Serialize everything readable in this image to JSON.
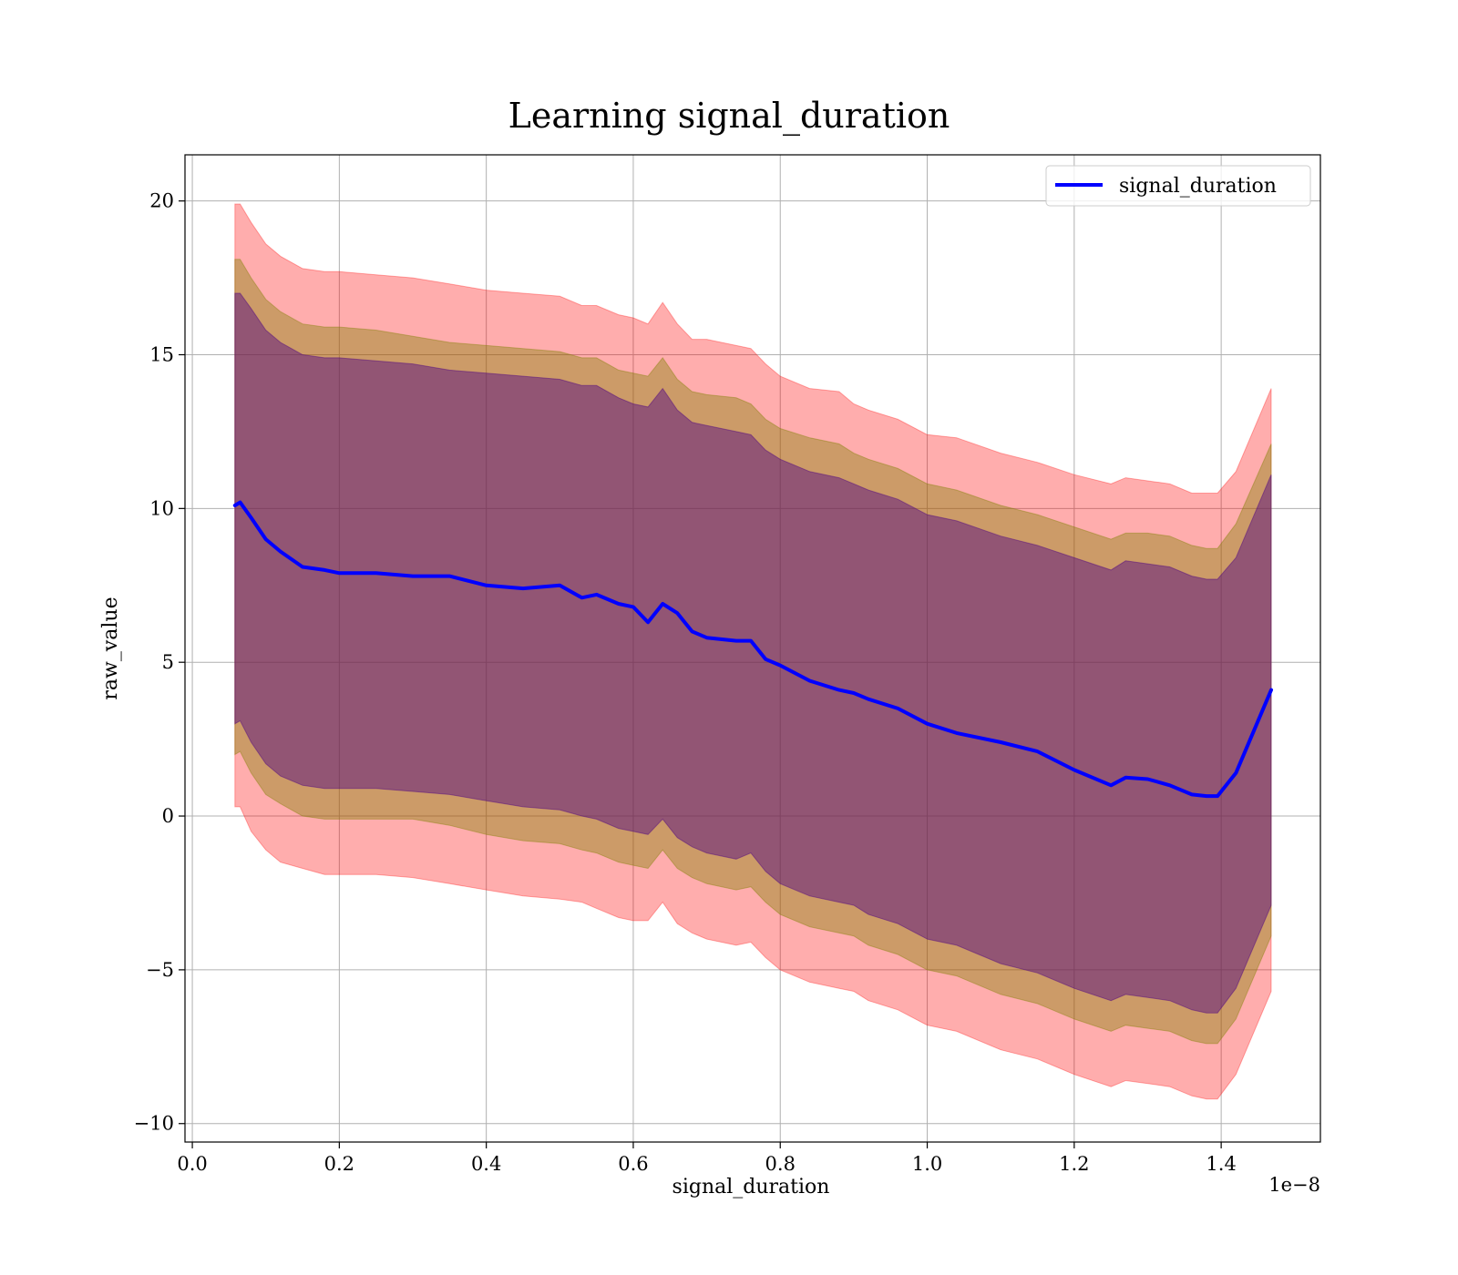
{
  "chart_data": {
    "type": "line",
    "title": "Learning signal_duration",
    "xlabel": "signal_duration",
    "ylabel": "raw_value",
    "x_offset_text": "1e−8",
    "xlim": [
      -0.01,
      1.535
    ],
    "ylim": [
      -10.6,
      21.5
    ],
    "xticks": [
      0.0,
      0.2,
      0.4,
      0.6,
      0.8,
      1.0,
      1.2,
      1.4
    ],
    "xtick_labels": [
      "0.0",
      "0.2",
      "0.4",
      "0.6",
      "0.8",
      "1.0",
      "1.2",
      "1.4"
    ],
    "yticks": [
      -10,
      -5,
      0,
      5,
      10,
      15,
      20
    ],
    "ytick_labels": [
      "−10",
      "−5",
      "0",
      "5",
      "10",
      "15",
      "20"
    ],
    "grid": true,
    "legend_position": "top-right",
    "x": [
      0.058,
      0.065,
      0.08,
      0.1,
      0.12,
      0.15,
      0.18,
      0.2,
      0.25,
      0.3,
      0.35,
      0.4,
      0.45,
      0.5,
      0.53,
      0.55,
      0.58,
      0.6,
      0.62,
      0.64,
      0.66,
      0.68,
      0.7,
      0.74,
      0.76,
      0.78,
      0.8,
      0.84,
      0.88,
      0.9,
      0.92,
      0.96,
      1.0,
      1.04,
      1.1,
      1.15,
      1.2,
      1.25,
      1.27,
      1.3,
      1.33,
      1.36,
      1.38,
      1.395,
      1.42,
      1.468
    ],
    "series": [
      {
        "name": "signal_duration",
        "color": "#0000ff",
        "values": [
          10.1,
          10.2,
          9.7,
          9.0,
          8.6,
          8.1,
          8.0,
          7.9,
          7.9,
          7.8,
          7.8,
          7.5,
          7.4,
          7.5,
          7.1,
          7.2,
          6.9,
          6.8,
          6.3,
          6.9,
          6.6,
          6.0,
          5.8,
          5.7,
          5.7,
          5.1,
          4.9,
          4.4,
          4.1,
          4.0,
          3.8,
          3.5,
          3.0,
          2.7,
          2.4,
          2.1,
          1.5,
          1.0,
          1.25,
          1.2,
          1.0,
          0.7,
          0.65,
          0.65,
          1.4,
          4.1
        ]
      }
    ],
    "bands": [
      {
        "fill": "#ff0000",
        "opacity": 0.32,
        "upper": [
          19.9,
          19.9,
          19.3,
          18.6,
          18.2,
          17.8,
          17.7,
          17.7,
          17.6,
          17.5,
          17.3,
          17.1,
          17.0,
          16.9,
          16.6,
          16.6,
          16.3,
          16.2,
          16.0,
          16.7,
          16.0,
          15.5,
          15.5,
          15.3,
          15.2,
          14.7,
          14.3,
          13.9,
          13.8,
          13.4,
          13.2,
          12.9,
          12.4,
          12.3,
          11.8,
          11.5,
          11.1,
          10.8,
          11.0,
          10.9,
          10.8,
          10.5,
          10.5,
          10.5,
          11.2,
          13.9
        ],
        "lower": [
          0.3,
          0.3,
          -0.5,
          -1.1,
          -1.5,
          -1.7,
          -1.9,
          -1.9,
          -1.9,
          -2.0,
          -2.2,
          -2.4,
          -2.6,
          -2.7,
          -2.8,
          -3.0,
          -3.3,
          -3.4,
          -3.4,
          -2.8,
          -3.5,
          -3.8,
          -4.0,
          -4.2,
          -4.1,
          -4.6,
          -5.0,
          -5.4,
          -5.6,
          -5.7,
          -6.0,
          -6.3,
          -6.8,
          -7.0,
          -7.6,
          -7.9,
          -8.4,
          -8.8,
          -8.6,
          -8.7,
          -8.8,
          -9.1,
          -9.2,
          -9.2,
          -8.4,
          -5.7
        ]
      },
      {
        "fill": "#7f7f00",
        "opacity": 0.4,
        "upper": [
          18.1,
          18.1,
          17.5,
          16.8,
          16.4,
          16.0,
          15.9,
          15.9,
          15.8,
          15.6,
          15.4,
          15.3,
          15.2,
          15.1,
          14.9,
          14.9,
          14.5,
          14.4,
          14.3,
          14.9,
          14.2,
          13.8,
          13.7,
          13.6,
          13.4,
          12.9,
          12.6,
          12.3,
          12.1,
          11.8,
          11.6,
          11.3,
          10.8,
          10.6,
          10.1,
          9.8,
          9.4,
          9.0,
          9.2,
          9.2,
          9.1,
          8.8,
          8.7,
          8.7,
          9.5,
          12.1
        ],
        "lower": [
          2.0,
          2.1,
          1.4,
          0.7,
          0.4,
          0.0,
          -0.1,
          -0.1,
          -0.1,
          -0.1,
          -0.3,
          -0.6,
          -0.8,
          -0.9,
          -1.1,
          -1.2,
          -1.5,
          -1.6,
          -1.7,
          -1.1,
          -1.7,
          -2.0,
          -2.2,
          -2.4,
          -2.3,
          -2.8,
          -3.2,
          -3.6,
          -3.8,
          -3.9,
          -4.2,
          -4.5,
          -5.0,
          -5.2,
          -5.8,
          -6.1,
          -6.6,
          -7.0,
          -6.8,
          -6.9,
          -7.0,
          -7.3,
          -7.4,
          -7.4,
          -6.6,
          -3.9
        ]
      },
      {
        "fill": "#4b0082",
        "opacity": 0.45,
        "upper": [
          17.0,
          17.0,
          16.5,
          15.8,
          15.4,
          15.0,
          14.9,
          14.9,
          14.8,
          14.7,
          14.5,
          14.4,
          14.3,
          14.2,
          14.0,
          14.0,
          13.6,
          13.4,
          13.3,
          13.9,
          13.2,
          12.8,
          12.7,
          12.5,
          12.4,
          11.9,
          11.6,
          11.2,
          11.0,
          10.8,
          10.6,
          10.3,
          9.8,
          9.6,
          9.1,
          8.8,
          8.4,
          8.0,
          8.3,
          8.2,
          8.1,
          7.8,
          7.7,
          7.7,
          8.4,
          11.1
        ],
        "lower": [
          3.0,
          3.1,
          2.4,
          1.7,
          1.3,
          1.0,
          0.9,
          0.9,
          0.9,
          0.8,
          0.7,
          0.5,
          0.3,
          0.2,
          0.0,
          -0.1,
          -0.4,
          -0.5,
          -0.6,
          -0.1,
          -0.7,
          -1.0,
          -1.2,
          -1.4,
          -1.2,
          -1.8,
          -2.2,
          -2.6,
          -2.8,
          -2.9,
          -3.2,
          -3.5,
          -4.0,
          -4.2,
          -4.8,
          -5.1,
          -5.6,
          -6.0,
          -5.8,
          -5.9,
          -6.0,
          -6.3,
          -6.4,
          -6.4,
          -5.6,
          -2.9
        ]
      }
    ]
  }
}
